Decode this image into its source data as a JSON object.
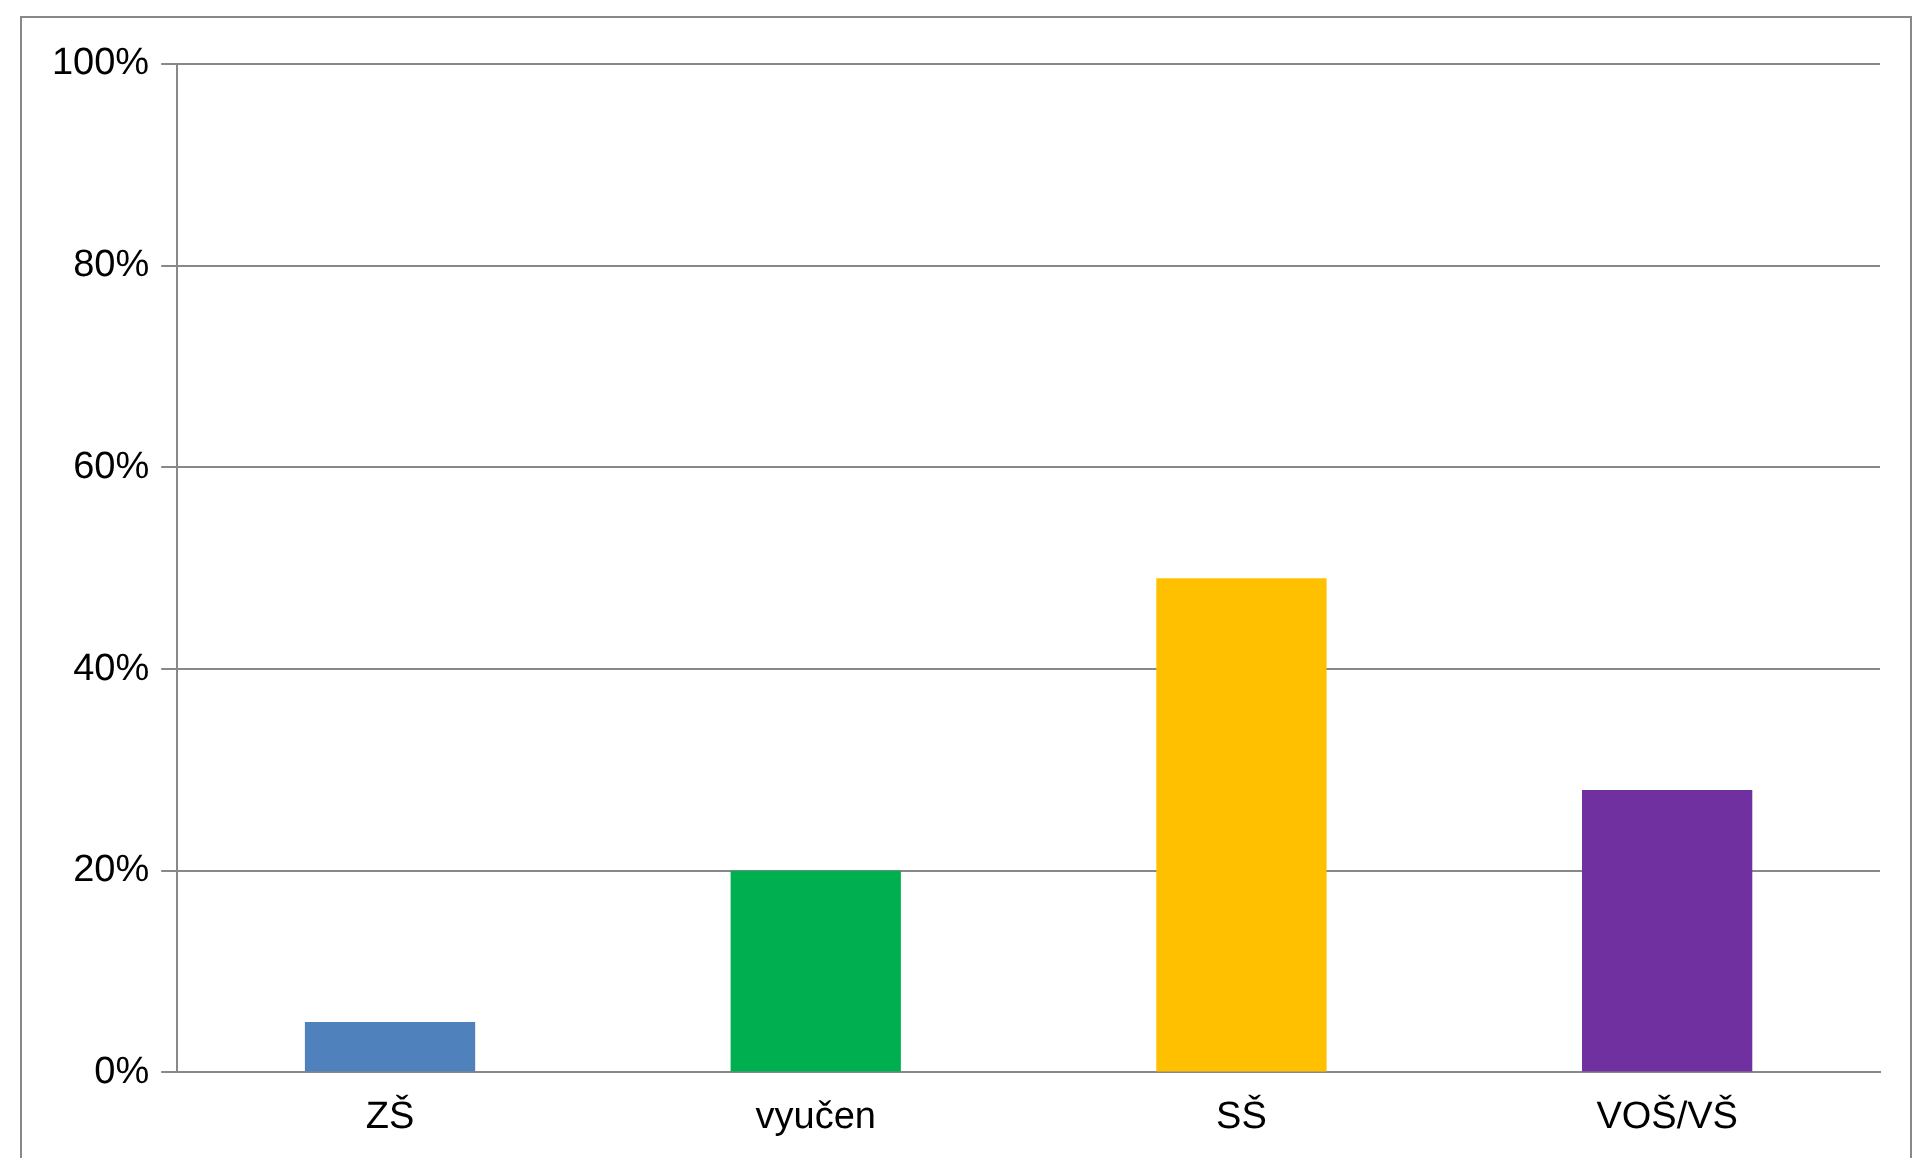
{
  "chart_data": {
    "type": "bar",
    "categories": [
      "ZŠ",
      "vyučen",
      "SŠ",
      "VOŠ/VŠ"
    ],
    "values": [
      5,
      20,
      49,
      28
    ],
    "colors": [
      "#4f81bd",
      "#00b050",
      "#ffc000",
      "#7030a0"
    ],
    "ylim": [
      0,
      100
    ],
    "yticks": [
      {
        "value": 0,
        "label": "0%"
      },
      {
        "value": 20,
        "label": "20%"
      },
      {
        "value": 40,
        "label": "40%"
      },
      {
        "value": 60,
        "label": "60%"
      },
      {
        "value": 80,
        "label": "80%"
      },
      {
        "value": 100,
        "label": "100%"
      }
    ],
    "grid": "y",
    "legend": false
  }
}
